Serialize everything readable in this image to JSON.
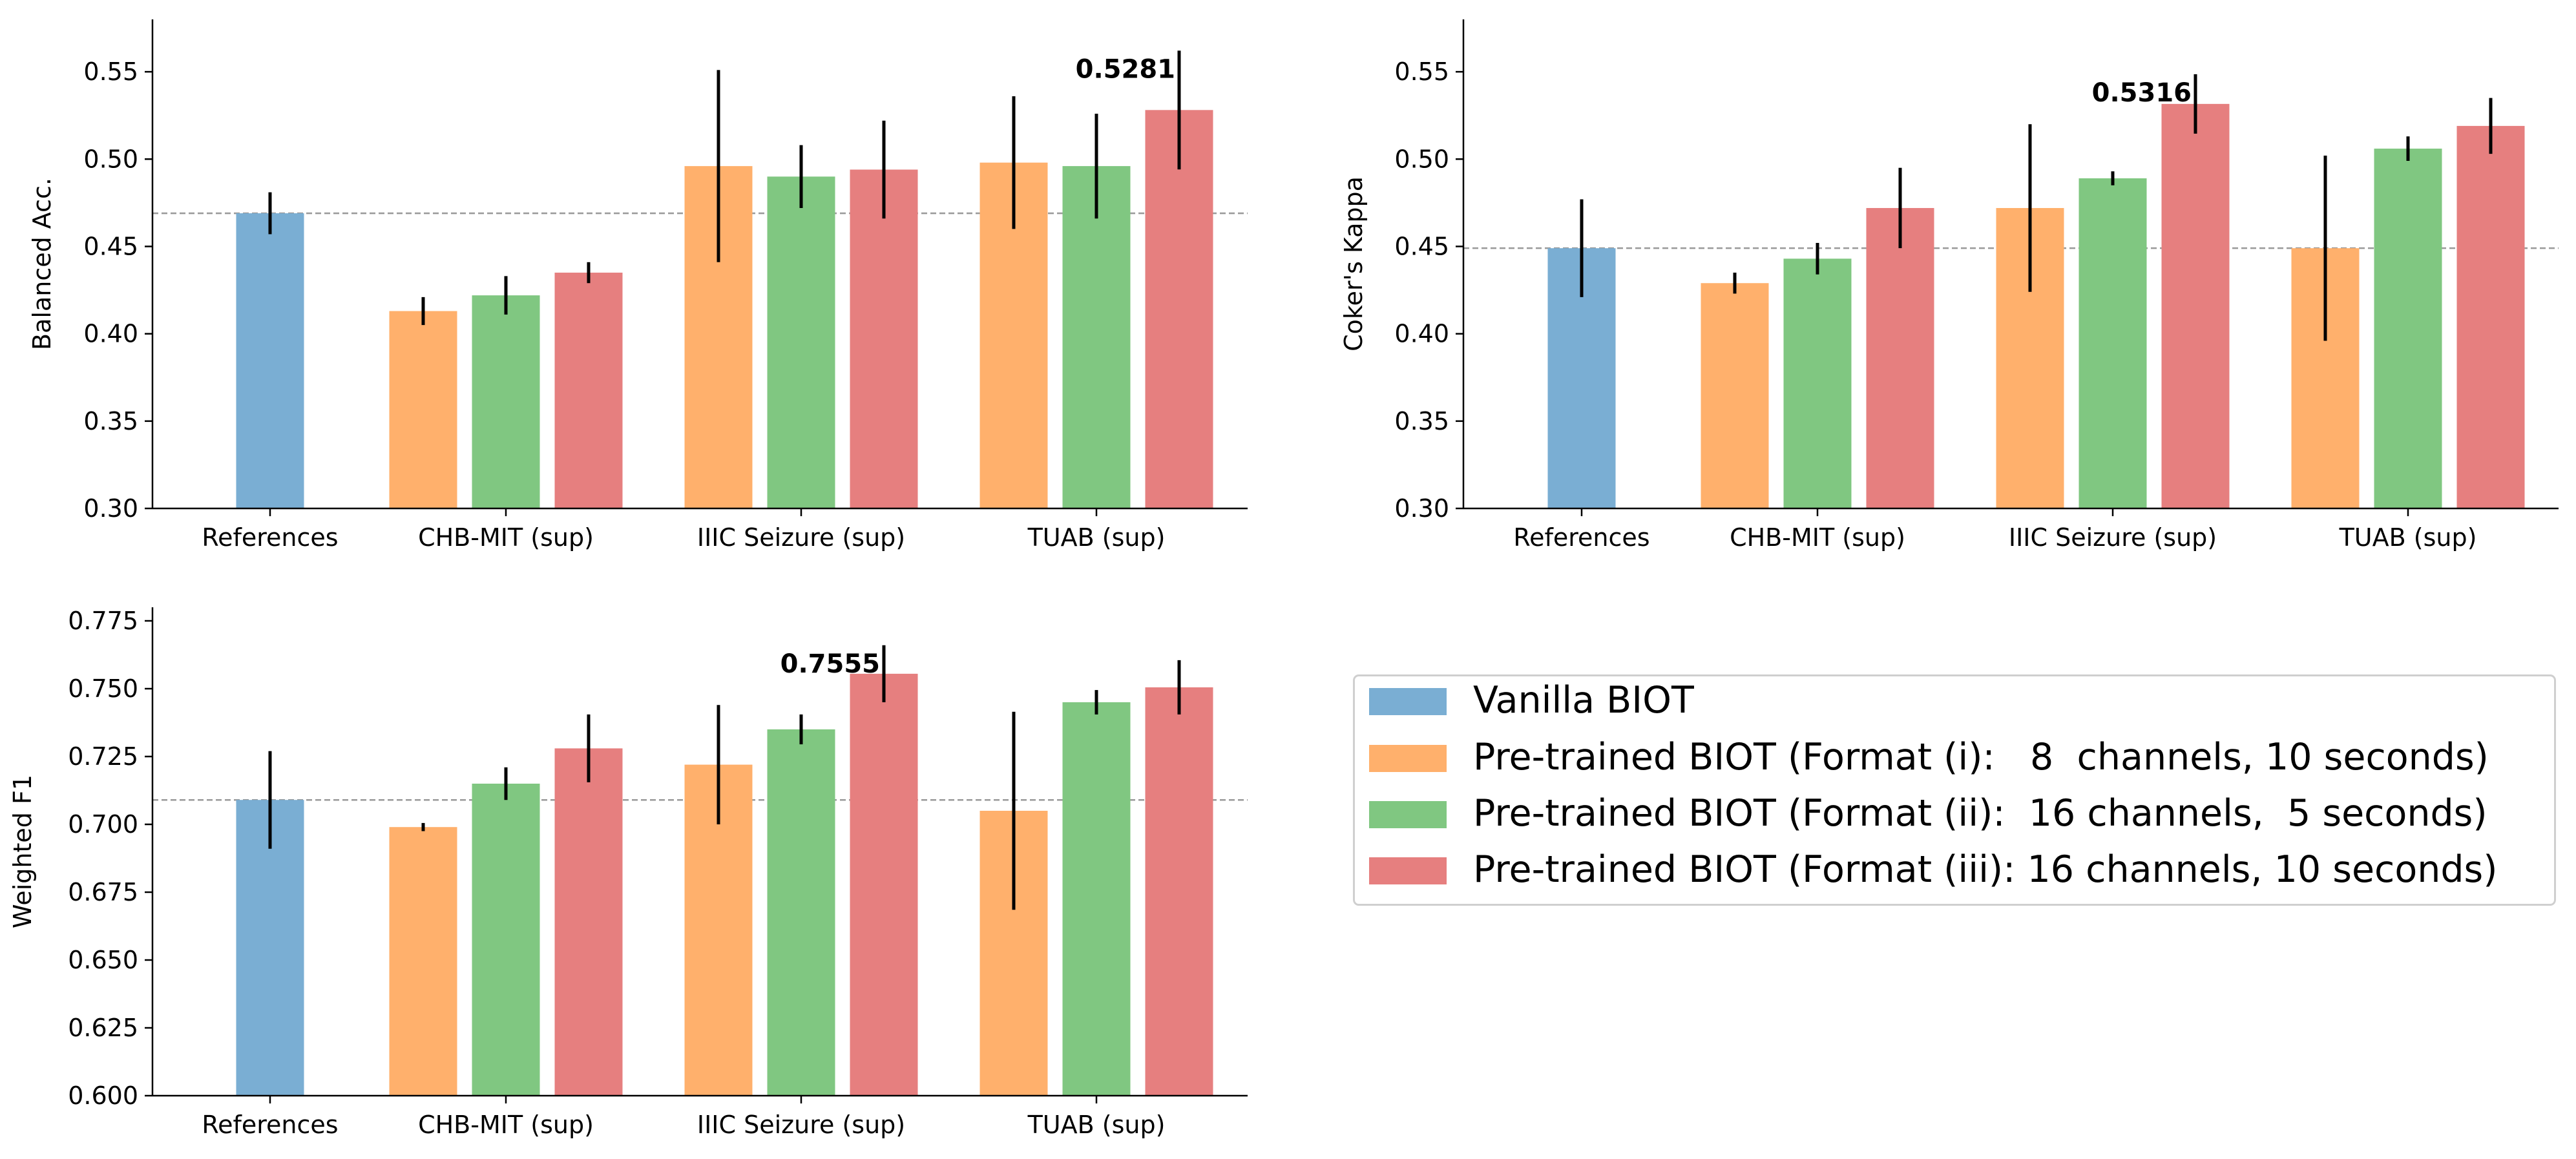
{
  "colors": {
    "vanilla": "#7aaed3",
    "format_i": "#ffb06c",
    "format_ii": "#80c781",
    "format_iii": "#e67f7f",
    "reference_line": "#999999"
  },
  "legend": {
    "items": [
      {
        "label": "Vanilla BIOT",
        "color_key": "vanilla"
      },
      {
        "label": "Pre-trained BIOT (Format (i):   8  channels, 10 seconds)",
        "color_key": "format_i"
      },
      {
        "label": "Pre-trained BIOT (Format (ii):  16 channels,  5 seconds)",
        "color_key": "format_ii"
      },
      {
        "label": "Pre-trained BIOT (Format (iii): 16 channels, 10 seconds)",
        "color_key": "format_iii"
      }
    ],
    "placement": "lower-right"
  },
  "chart_data": [
    {
      "type": "bar",
      "title": "",
      "xlabel": "",
      "ylabel": "Balanced Acc.",
      "ylim": [
        0.3,
        0.58
      ],
      "yticks": [
        "0.30",
        "0.35",
        "0.40",
        "0.45",
        "0.50",
        "0.55"
      ],
      "categories": [
        "References",
        "CHB-MIT (sup)",
        "IIIC Seizure (sup)",
        "TUAB (sup)"
      ],
      "reference_value": 0.469,
      "bars": [
        {
          "category": "References",
          "series": "Vanilla BIOT",
          "color_key": "vanilla",
          "value": 0.469,
          "err": 0.012
        },
        {
          "category": "CHB-MIT (sup)",
          "series": "Format (i)",
          "color_key": "format_i",
          "value": 0.413,
          "err": 0.008
        },
        {
          "category": "CHB-MIT (sup)",
          "series": "Format (ii)",
          "color_key": "format_ii",
          "value": 0.422,
          "err": 0.011
        },
        {
          "category": "CHB-MIT (sup)",
          "series": "Format (iii)",
          "color_key": "format_iii",
          "value": 0.435,
          "err": 0.006
        },
        {
          "category": "IIIC Seizure (sup)",
          "series": "Format (i)",
          "color_key": "format_i",
          "value": 0.496,
          "err": 0.055
        },
        {
          "category": "IIIC Seizure (sup)",
          "series": "Format (ii)",
          "color_key": "format_ii",
          "value": 0.49,
          "err": 0.018
        },
        {
          "category": "IIIC Seizure (sup)",
          "series": "Format (iii)",
          "color_key": "format_iii",
          "value": 0.494,
          "err": 0.028
        },
        {
          "category": "TUAB (sup)",
          "series": "Format (i)",
          "color_key": "format_i",
          "value": 0.498,
          "err": 0.038
        },
        {
          "category": "TUAB (sup)",
          "series": "Format (ii)",
          "color_key": "format_ii",
          "value": 0.496,
          "err": 0.03
        },
        {
          "category": "TUAB (sup)",
          "series": "Format (iii)",
          "color_key": "format_iii",
          "value": 0.5281,
          "err": 0.034
        }
      ],
      "annotation": {
        "text": "0.5281",
        "bar_index": 9
      }
    },
    {
      "type": "bar",
      "title": "",
      "xlabel": "",
      "ylabel": "Coker's Kappa",
      "ylim": [
        0.3,
        0.58
      ],
      "yticks": [
        "0.30",
        "0.35",
        "0.40",
        "0.45",
        "0.50",
        "0.55"
      ],
      "categories": [
        "References",
        "CHB-MIT (sup)",
        "IIIC Seizure (sup)",
        "TUAB (sup)"
      ],
      "reference_value": 0.449,
      "bars": [
        {
          "category": "References",
          "series": "Vanilla BIOT",
          "color_key": "vanilla",
          "value": 0.449,
          "err": 0.028
        },
        {
          "category": "CHB-MIT (sup)",
          "series": "Format (i)",
          "color_key": "format_i",
          "value": 0.429,
          "err": 0.006
        },
        {
          "category": "CHB-MIT (sup)",
          "series": "Format (ii)",
          "color_key": "format_ii",
          "value": 0.443,
          "err": 0.009
        },
        {
          "category": "CHB-MIT (sup)",
          "series": "Format (iii)",
          "color_key": "format_iii",
          "value": 0.472,
          "err": 0.023
        },
        {
          "category": "IIIC Seizure (sup)",
          "series": "Format (i)",
          "color_key": "format_i",
          "value": 0.472,
          "err": 0.048
        },
        {
          "category": "IIIC Seizure (sup)",
          "series": "Format (ii)",
          "color_key": "format_ii",
          "value": 0.489,
          "err": 0.004
        },
        {
          "category": "IIIC Seizure (sup)",
          "series": "Format (iii)",
          "color_key": "format_iii",
          "value": 0.5316,
          "err": 0.017
        },
        {
          "category": "TUAB (sup)",
          "series": "Format (i)",
          "color_key": "format_i",
          "value": 0.449,
          "err": 0.053
        },
        {
          "category": "TUAB (sup)",
          "series": "Format (ii)",
          "color_key": "format_ii",
          "value": 0.506,
          "err": 0.007
        },
        {
          "category": "TUAB (sup)",
          "series": "Format (iii)",
          "color_key": "format_iii",
          "value": 0.519,
          "err": 0.016
        }
      ],
      "annotation": {
        "text": "0.5316",
        "bar_index": 6
      }
    },
    {
      "type": "bar",
      "title": "",
      "xlabel": "",
      "ylabel": "Weighted F1",
      "ylim": [
        0.6,
        0.78
      ],
      "yticks": [
        "0.600",
        "0.625",
        "0.650",
        "0.675",
        "0.700",
        "0.725",
        "0.750",
        "0.775"
      ],
      "categories": [
        "References",
        "CHB-MIT (sup)",
        "IIIC Seizure (sup)",
        "TUAB (sup)"
      ],
      "reference_value": 0.709,
      "bars": [
        {
          "category": "References",
          "series": "Vanilla BIOT",
          "color_key": "vanilla",
          "value": 0.709,
          "err": 0.018
        },
        {
          "category": "CHB-MIT (sup)",
          "series": "Format (i)",
          "color_key": "format_i",
          "value": 0.699,
          "err": 0.0015
        },
        {
          "category": "CHB-MIT (sup)",
          "series": "Format (ii)",
          "color_key": "format_ii",
          "value": 0.715,
          "err": 0.006
        },
        {
          "category": "CHB-MIT (sup)",
          "series": "Format (iii)",
          "color_key": "format_iii",
          "value": 0.728,
          "err": 0.0125
        },
        {
          "category": "IIIC Seizure (sup)",
          "series": "Format (i)",
          "color_key": "format_i",
          "value": 0.722,
          "err": 0.022
        },
        {
          "category": "IIIC Seizure (sup)",
          "series": "Format (ii)",
          "color_key": "format_ii",
          "value": 0.735,
          "err": 0.0055
        },
        {
          "category": "IIIC Seizure (sup)",
          "series": "Format (iii)",
          "color_key": "format_iii",
          "value": 0.7555,
          "err": 0.0105
        },
        {
          "category": "TUAB (sup)",
          "series": "Format (i)",
          "color_key": "format_i",
          "value": 0.705,
          "err": 0.0365
        },
        {
          "category": "TUAB (sup)",
          "series": "Format (ii)",
          "color_key": "format_ii",
          "value": 0.745,
          "err": 0.0045
        },
        {
          "category": "TUAB (sup)",
          "series": "Format (iii)",
          "color_key": "format_iii",
          "value": 0.7505,
          "err": 0.01
        }
      ],
      "annotation": {
        "text": "0.7555",
        "bar_index": 6
      }
    }
  ]
}
